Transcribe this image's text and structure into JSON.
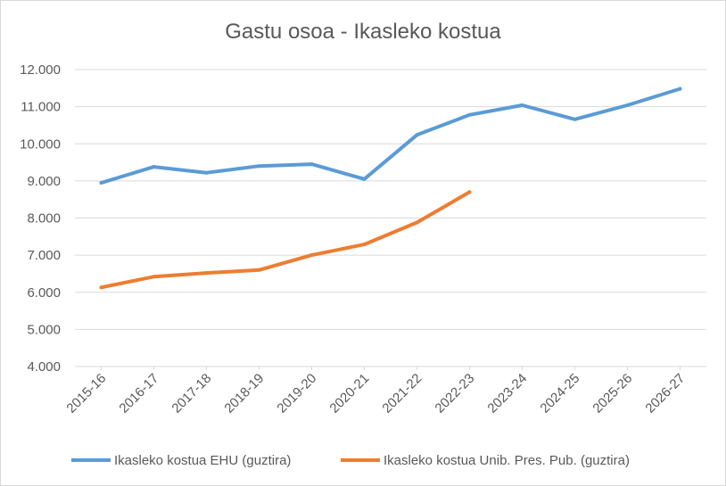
{
  "chart_data": {
    "type": "line",
    "title": "Gastu osoa - Ikasleko kostua",
    "xlabel": "",
    "ylabel": "",
    "ylim": [
      4000,
      12000
    ],
    "y_ticks": [
      4000,
      5000,
      6000,
      7000,
      8000,
      9000,
      10000,
      11000,
      12000
    ],
    "y_tick_labels": [
      "4.000",
      "5.000",
      "6.000",
      "7.000",
      "8.000",
      "9.000",
      "10.000",
      "11.000",
      "12.000"
    ],
    "categories": [
      "2015-16",
      "2016-17",
      "2017-18",
      "2018-19",
      "2019-20",
      "2020-21",
      "2021-22",
      "2022-23",
      "2023-24",
      "2024-25",
      "2025-26",
      "2026-27"
    ],
    "grid": true,
    "legend_position": "bottom",
    "series": [
      {
        "name": "Ikasleko kostua EHU (guztira)",
        "color": "#5b9bd5",
        "values": [
          8950,
          9380,
          9220,
          9400,
          9450,
          9050,
          10240,
          10780,
          11040,
          10660,
          11040,
          11480
        ]
      },
      {
        "name": "Ikasleko kostua Unib. Pres. Pub. (guztira)",
        "color": "#ed7d31",
        "values": [
          6130,
          6420,
          6520,
          6600,
          7000,
          7290,
          7880,
          8700,
          null,
          null,
          null,
          null
        ]
      }
    ]
  }
}
